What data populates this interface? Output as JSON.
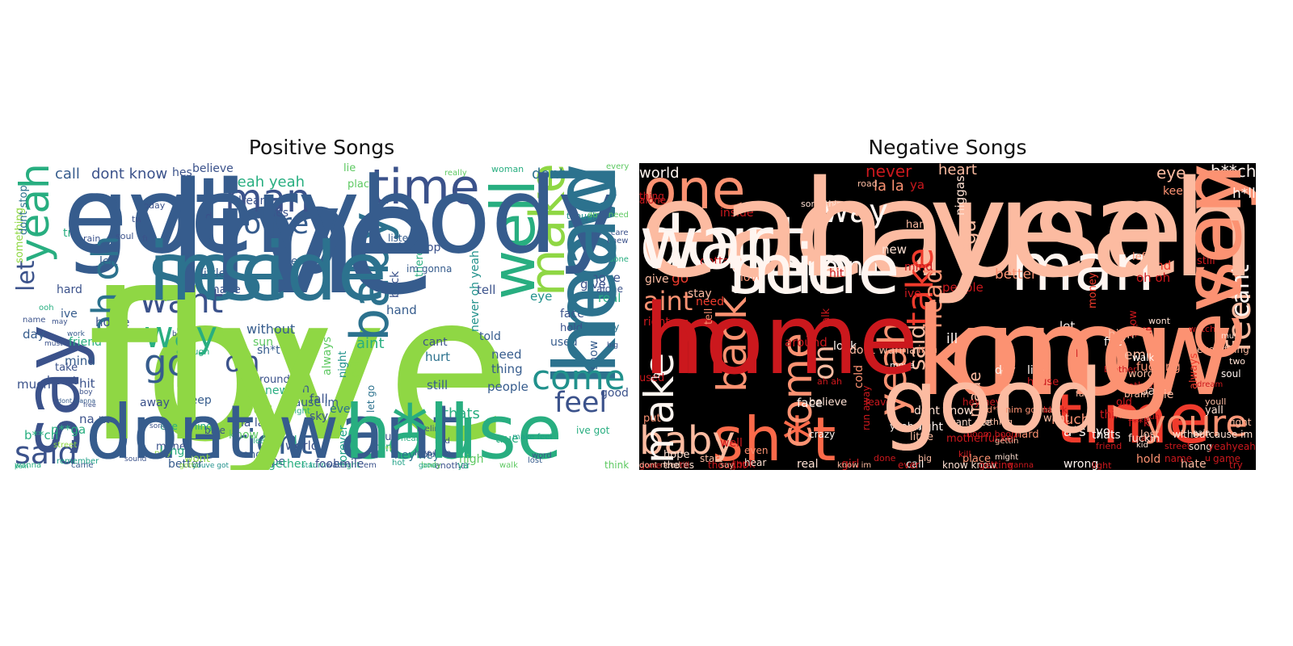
{
  "panels": [
    {
      "title": "Positive Songs",
      "background": "#ffffff",
      "palette": "viridis",
      "words": [
        "love",
        "im",
        "got",
        "see",
        "one",
        "cause",
        "know",
        "say",
        "time",
        "well",
        "man",
        "baby",
        "make",
        "youre",
        "yeah",
        "oh oh",
        "want",
        "way",
        "go",
        "oh",
        "come",
        "feel",
        "said",
        "right",
        "let",
        "dont know",
        "call",
        "dont",
        "yeah yeah",
        "aint",
        "need",
        "believe",
        "hes",
        "dream",
        "shes",
        "beat",
        "tell",
        "eye",
        "give",
        "lie",
        "place",
        "id",
        "thought",
        "today",
        "fire",
        "two",
        "soul",
        "rain",
        "something",
        "dont stop",
        "try",
        "left",
        "hard",
        "ive",
        "ooh",
        "name",
        "home",
        "day",
        "friend",
        "much",
        "mind",
        "hit",
        "heart",
        "take",
        "boy",
        "na na",
        "n**ga",
        "b**ch",
        "away",
        "keep",
        "life",
        "thing",
        "people",
        "still",
        "thats",
        "girl",
        "put",
        "hear",
        "hurt",
        "cant",
        "told",
        "hand",
        "back",
        "theres",
        "im gonna",
        "never oh yeah",
        "really",
        "woman",
        "every",
        "dont need",
        "dont care",
        "knew",
        "done",
        "move",
        "real",
        "alone",
        "face",
        "hold",
        "big",
        "used",
        "stay",
        "show",
        "good",
        "think",
        "ive got",
        "without",
        "sun",
        "sh*t",
        "around",
        "new",
        "youll",
        "leave",
        "end",
        "hope",
        "find",
        "sky",
        "run",
        "fall",
        "even",
        "night",
        "always",
        "ill",
        "cause im",
        "la la",
        "tonight",
        "little",
        "made",
        "ye",
        "everything",
        "money",
        "better",
        "hey hey",
        "love love",
        "look",
        "let go",
        "light",
        "forever",
        "feeling",
        "know im",
        "together",
        "wont",
        "world",
        "long",
        "wanna",
        "came",
        "remember",
        "street",
        "dont wanna",
        "free",
        "pain",
        "must",
        "work",
        "may",
        "sound",
        "best",
        "enough",
        "song",
        "play",
        "gotta",
        "youve got",
        "star",
        "blue",
        "true",
        "listen",
        "hip hop",
        "em",
        "another",
        "ya",
        "high",
        "walk",
        "make feel",
        "lost",
        "word",
        "hot",
        "bad",
        "f**k",
        "old",
        "body",
        "turn",
        "watch",
        "gone",
        "smile",
        "ah",
        "fool",
        "fly",
        "live",
        "everybody",
        "inside",
        "dont want",
        "h*ll",
        "head"
      ]
    },
    {
      "title": "Negative Songs",
      "background": "#000000",
      "palette": "reds",
      "words": [
        "cause",
        "know",
        "im",
        "got",
        "see",
        "say",
        "dont",
        "one",
        "man",
        "time",
        "sh*t",
        "baby",
        "come",
        "take",
        "make",
        "back",
        "youre",
        "feel",
        "way",
        "na na",
        "yeah",
        "cant",
        "oh",
        "aint",
        "said",
        "world",
        "never",
        "heart",
        "la la",
        "ya",
        "eye",
        "b**ch",
        "head",
        "n**ga",
        "niggas",
        "hand",
        "mind",
        "ive",
        "h*ll",
        "keep",
        "still",
        "oh oh",
        "thing",
        "gotta",
        "love",
        "go",
        "right",
        "need",
        "give",
        "stay",
        "tell",
        "around",
        "night",
        "wrong",
        "girl",
        "well",
        "hit",
        "leave",
        "dont know",
        "look",
        "call",
        "put",
        "cold",
        "dont wanna",
        "little",
        "face",
        "real",
        "life",
        "let",
        "ill",
        "people",
        "made",
        "much",
        "want",
        "day",
        "end",
        "a*s",
        "em",
        "always",
        "think",
        "f**k",
        "another",
        "thats",
        "better",
        "money",
        "show",
        "word",
        "hate",
        "left",
        "dream",
        "die",
        "live",
        "old",
        "hard",
        "fire",
        "yall",
        "kid",
        "hold",
        "yo",
        "lost",
        "bad",
        "mad",
        "gun",
        "try",
        "street",
        "fuckin",
        "fucking",
        "high",
        "walk",
        "wont",
        "must",
        "youll",
        "pain",
        "name",
        "hope",
        "start",
        "thought",
        "took",
        "believe",
        "crazy",
        "alone",
        "inside",
        "new",
        "talk",
        "ah ah",
        "gone",
        "hear",
        "friend",
        "know im",
        "motherfucker",
        "dont need",
        "theres",
        "till",
        "say",
        "even",
        "used",
        "fight",
        "game",
        "song",
        "lie",
        "brother",
        "brain",
        "move",
        "road",
        "something",
        "place",
        "know know",
        "getting",
        "boom boom",
        "gettin",
        "nothing",
        "cant see",
        "wanna",
        "yeah im",
        "ima",
        "might",
        "kill",
        "light",
        "run away",
        "beat",
        "house",
        "soul",
        "everything",
        "two",
        "watch",
        "fall",
        "withoutcause im",
        "yeahyeah",
        "u",
        "hey hey",
        "d*mnim gonna",
        "black",
        "big",
        "ever",
        "done",
        "yeah yeah",
        "long",
        "home",
        "good",
        "mine",
        "even",
        "war"
      ]
    }
  ]
}
